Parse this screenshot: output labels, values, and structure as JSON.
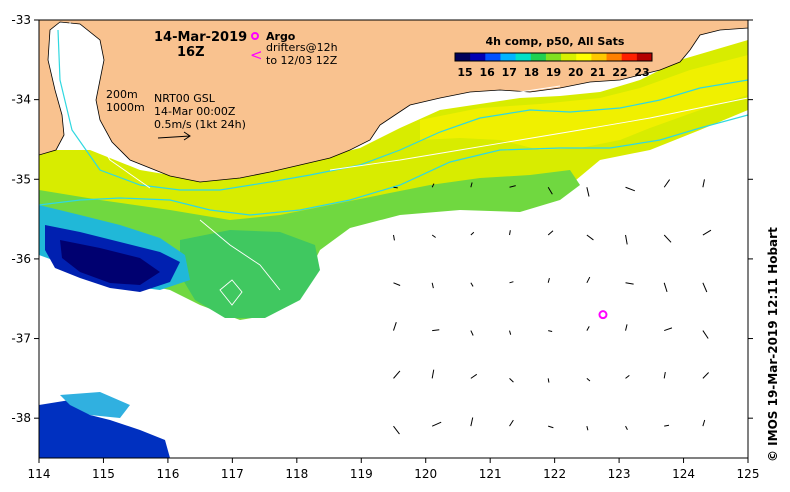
{
  "title": {
    "date": "14-Mar-2019",
    "hour": "16Z"
  },
  "legend": {
    "argo_label": "Argo",
    "drifter_symbol": "<",
    "drifter_line1": "drifters@12h",
    "drifter_line2": "to 12/03 12Z",
    "argo_color": "#ff00ff"
  },
  "colorbar": {
    "title": "4h comp, p50, All Sats",
    "ticks": [
      "15",
      "16",
      "17",
      "18",
      "19",
      "20",
      "21",
      "22",
      "23"
    ],
    "colors": [
      "#00005a",
      "#0000b4",
      "#0050ff",
      "#00b4ff",
      "#00e0c8",
      "#20d050",
      "#80e020",
      "#d8f000",
      "#ffff00",
      "#ffc800",
      "#ff8000",
      "#ff2000",
      "#b40000"
    ]
  },
  "annotations": {
    "isobath1": "200m",
    "isobath2": "1000m",
    "current_line1": "NRT00 GSL",
    "current_line2": "14-Mar 00:00Z",
    "current_line3": "0.5m/s (1kt 24h)"
  },
  "axes": {
    "x_ticks": [
      "114",
      "115",
      "116",
      "117",
      "118",
      "119",
      "120",
      "121",
      "122",
      "123",
      "124",
      "125"
    ],
    "y_ticks": [
      "-33",
      "-34",
      "-35",
      "-36",
      "-37",
      "-38"
    ],
    "x_range": [
      114,
      125
    ],
    "y_range": [
      -38.5,
      -33
    ]
  },
  "argo_float": {
    "lon": 122.75,
    "lat": -36.7
  },
  "land_color": "#f9c28f",
  "credit": "© IMOS 19-Mar-2019 12:11 Hobart"
}
